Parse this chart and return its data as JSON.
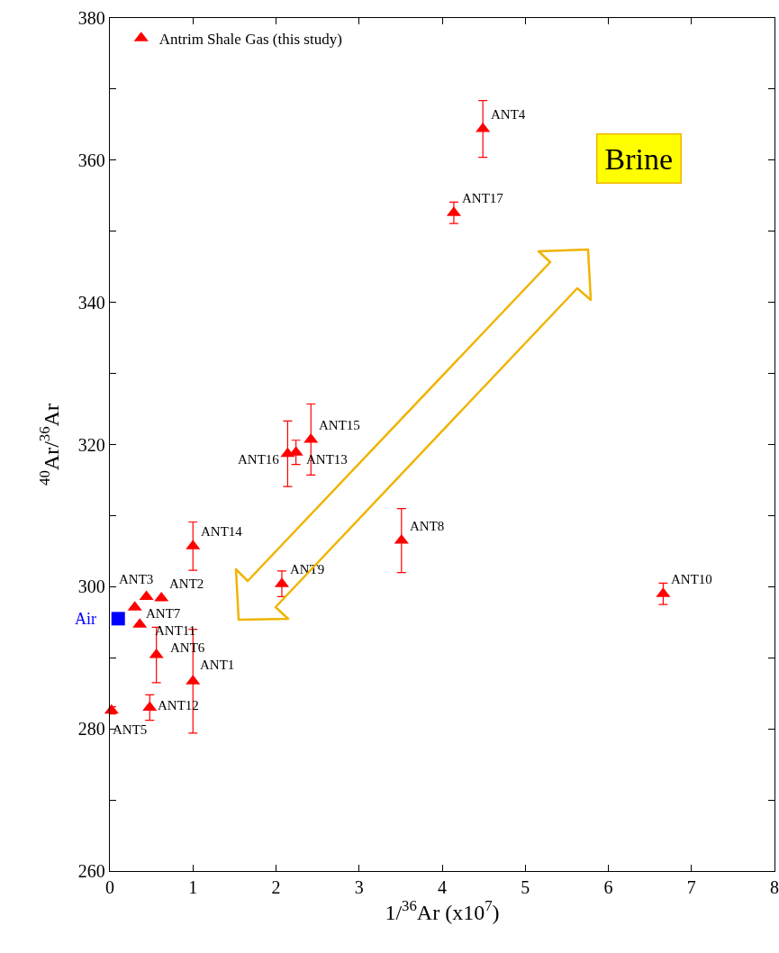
{
  "chart_data": {
    "type": "scatter",
    "xlabel": "1/$^{36}$Ar (x10$^{7}$)",
    "ylabel": "$^{40}$Ar/$^{36}$Ar",
    "marker": "triangle",
    "legend": "top left",
    "grid": false,
    "xlim": [
      0,
      8
    ],
    "xticks": [
      0,
      1,
      2,
      3,
      4,
      5,
      6,
      7,
      8
    ],
    "ylim": [
      260,
      380
    ],
    "yticks": [
      260,
      {
        "value": 270,
        "label": null
      },
      280,
      {
        "value": 290,
        "label": null
      },
      300,
      {
        "value": 310,
        "label": null
      },
      320,
      {
        "value": 330,
        "label": null
      },
      340,
      {
        "value": 350,
        "label": null
      },
      360,
      {
        "value": 370,
        "label": null
      },
      380
    ],
    "series": [
      {
        "name": "Antrim Shale Gas (this study)",
        "color": "#ff0000",
        "x": [
          1.0,
          0.62,
          0.44,
          4.49,
          0.02,
          0.56,
          0.3,
          3.51,
          2.07,
          6.66,
          0.36,
          0.48,
          2.24,
          1.0,
          2.42,
          2.14,
          4.14
        ],
        "values": [
          286.7,
          298.4,
          298.6,
          364.4,
          282.6,
          290.4,
          297.1,
          306.5,
          300.4,
          299.0,
          294.7,
          283.0,
          318.9,
          305.7,
          320.7,
          318.7,
          352.6
        ],
        "errors": [
          7.3,
          null,
          null,
          4,
          0.5,
          3.9,
          null,
          4.5,
          1.8,
          1.5,
          null,
          1.8,
          1.7,
          3.4,
          5,
          4.6,
          1.5
        ]
      },
      {
        "name": "Air",
        "color": "#0000ff",
        "marker": "square",
        "x": [
          0.1
        ],
        "values": [
          295.5
        ]
      }
    ],
    "annotations": [
      {
        "text": "ANT1",
        "x": 1.0,
        "y": 286.7
      },
      {
        "text": "ANT2",
        "x": 0.62,
        "y": 298.4
      },
      {
        "text": "ANT3",
        "x": 0.44,
        "y": 298.6
      },
      {
        "text": "ANT4",
        "x": 4.49,
        "y": 364.4
      },
      {
        "text": "ANT5",
        "x": 0.02,
        "y": 282.6
      },
      {
        "text": "ANT6",
        "x": 0.56,
        "y": 290.4
      },
      {
        "text": "ANT7",
        "x": 0.3,
        "y": 297.1
      },
      {
        "text": "ANT8",
        "x": 3.51,
        "y": 306.5
      },
      {
        "text": "ANT9",
        "x": 2.07,
        "y": 300.4
      },
      {
        "text": "ANT10",
        "x": 6.66,
        "y": 299.0
      },
      {
        "text": "ANT11",
        "x": 0.36,
        "y": 294.7
      },
      {
        "text": "ANT12",
        "x": 0.48,
        "y": 283.0
      },
      {
        "text": "ANT13",
        "x": 2.24,
        "y": 318.9
      },
      {
        "text": "ANT14",
        "x": 1.0,
        "y": 305.7
      },
      {
        "text": "ANT15",
        "x": 2.42,
        "y": 320.7
      },
      {
        "text": "ANT16",
        "x": 2.14,
        "y": 318.7
      },
      {
        "text": "ANT17",
        "x": 4.14,
        "y": 352.6
      },
      "Brine"
    ]
  }
}
